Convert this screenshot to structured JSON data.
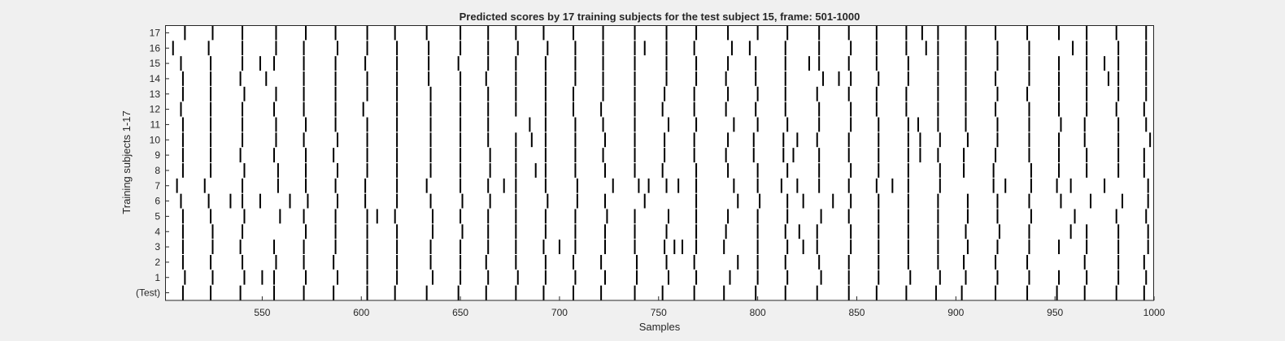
{
  "chart_data": {
    "type": "raster",
    "title": "Predicted scores by 17 training subjects for the test subject 15, frame: 501-1000",
    "xlabel": "Samples",
    "ylabel": "Training subjects 1-17",
    "xlim": [
      501,
      1000
    ],
    "xticks": [
      550,
      600,
      650,
      700,
      750,
      800,
      850,
      900,
      950,
      1000
    ],
    "y_categories": [
      "(Test)",
      "1",
      "2",
      "3",
      "4",
      "5",
      "6",
      "7",
      "8",
      "9",
      "10",
      "11",
      "12",
      "13",
      "14",
      "15",
      "16",
      "17"
    ],
    "events": {
      "(Test)": [
        510,
        524,
        539,
        556,
        571,
        586,
        603,
        617,
        633,
        649,
        663,
        678,
        692,
        707,
        721,
        738,
        752,
        768,
        783,
        799,
        814,
        830,
        846,
        860,
        875,
        890,
        903,
        920,
        936,
        951,
        965,
        981,
        995
      ],
      "1": [
        511,
        525,
        541,
        550,
        556,
        572,
        588,
        603,
        618,
        636,
        650,
        664,
        679,
        693,
        708,
        723,
        739,
        755,
        769,
        786,
        800,
        815,
        832,
        846,
        861,
        877,
        892,
        905,
        921,
        937,
        952,
        966,
        982,
        996
      ],
      "2": [
        510,
        524,
        540,
        557,
        571,
        586,
        603,
        618,
        635,
        650,
        663,
        678,
        693,
        707,
        721,
        739,
        754,
        768,
        790,
        800,
        814,
        831,
        846,
        861,
        876,
        891,
        904,
        920,
        936,
        965,
        982,
        995
      ],
      "3": [
        510,
        525,
        539,
        556,
        571,
        587,
        603,
        618,
        635,
        650,
        664,
        678,
        692,
        700,
        708,
        723,
        738,
        753,
        758,
        762,
        769,
        783,
        800,
        815,
        823,
        830,
        847,
        861,
        876,
        891,
        906,
        921,
        937,
        952,
        966,
        982,
        997
      ],
      "4": [
        510,
        525,
        540,
        572,
        587,
        603,
        618,
        636,
        651,
        664,
        678,
        693,
        708,
        723,
        738,
        754,
        769,
        784,
        800,
        814,
        821,
        830,
        847,
        861,
        876,
        891,
        905,
        922,
        937,
        958,
        966,
        982,
        997
      ],
      "5": [
        510,
        524,
        541,
        559,
        571,
        587,
        603,
        608,
        617,
        636,
        650,
        664,
        678,
        693,
        708,
        724,
        738,
        755,
        769,
        785,
        800,
        815,
        832,
        846,
        861,
        876,
        891,
        906,
        921,
        938,
        960,
        981,
        996
      ],
      "6": [
        509,
        523,
        534,
        540,
        549,
        564,
        573,
        588,
        602,
        618,
        635,
        651,
        665,
        678,
        694,
        709,
        723,
        743,
        769,
        790,
        801,
        815,
        823,
        838,
        847,
        861,
        876,
        891,
        906,
        921,
        937,
        953,
        968,
        984,
        997
      ],
      "7": [
        507,
        521,
        540,
        558,
        572,
        587,
        602,
        618,
        633,
        650,
        664,
        672,
        678,
        693,
        709,
        727,
        740,
        745,
        754,
        760,
        769,
        788,
        800,
        812,
        820,
        831,
        846,
        860,
        868,
        876,
        892,
        919,
        925,
        938,
        951,
        958,
        975,
        997
      ],
      "8": [
        510,
        524,
        541,
        558,
        572,
        588,
        603,
        618,
        635,
        650,
        665,
        678,
        688,
        693,
        708,
        723,
        738,
        752,
        769,
        785,
        800,
        815,
        831,
        847,
        861,
        876,
        892,
        904,
        919,
        938,
        952,
        966,
        982,
        995
      ],
      "9": [
        510,
        524,
        539,
        556,
        572,
        586,
        603,
        618,
        635,
        650,
        665,
        678,
        693,
        708,
        722,
        738,
        753,
        768,
        784,
        798,
        813,
        818,
        831,
        846,
        861,
        876,
        882,
        891,
        904,
        920,
        937,
        952,
        966,
        982,
        995
      ],
      "10": [
        510,
        524,
        540,
        557,
        571,
        588,
        603,
        618,
        635,
        650,
        664,
        678,
        686,
        693,
        708,
        723,
        738,
        753,
        768,
        785,
        798,
        813,
        820,
        830,
        846,
        861,
        876,
        882,
        892,
        906,
        921,
        937,
        952,
        965,
        982,
        998
      ],
      "11": [
        510,
        524,
        540,
        557,
        572,
        587,
        603,
        618,
        635,
        650,
        664,
        685,
        693,
        708,
        722,
        738,
        755,
        769,
        788,
        800,
        815,
        831,
        847,
        861,
        876,
        881,
        891,
        905,
        921,
        937,
        953,
        965,
        982,
        996
      ],
      "12": [
        509,
        524,
        540,
        556,
        571,
        587,
        601,
        618,
        635,
        650,
        664,
        678,
        693,
        707,
        721,
        738,
        752,
        768,
        784,
        799,
        814,
        831,
        847,
        860,
        875,
        891,
        905,
        920,
        937,
        952,
        966,
        981,
        995
      ],
      "13": [
        510,
        524,
        541,
        557,
        571,
        587,
        603,
        618,
        635,
        650,
        664,
        678,
        693,
        707,
        722,
        738,
        753,
        768,
        785,
        800,
        814,
        830,
        846,
        860,
        875,
        891,
        905,
        921,
        936,
        952,
        966,
        982,
        996
      ],
      "14": [
        510,
        524,
        539,
        552,
        571,
        587,
        603,
        618,
        634,
        650,
        663,
        678,
        693,
        708,
        722,
        738,
        754,
        769,
        784,
        799,
        814,
        833,
        841,
        847,
        861,
        876,
        891,
        905,
        920,
        937,
        952,
        966,
        977,
        982,
        996
      ],
      "15": [
        509,
        524,
        540,
        549,
        556,
        571,
        587,
        602,
        618,
        634,
        649,
        664,
        678,
        693,
        708,
        722,
        738,
        754,
        769,
        785,
        799,
        814,
        826,
        831,
        846,
        860,
        876,
        891,
        905,
        921,
        937,
        952,
        966,
        975,
        982,
        996
      ],
      "16": [
        505,
        523,
        540,
        557,
        571,
        588,
        603,
        618,
        634,
        650,
        664,
        679,
        694,
        708,
        722,
        738,
        743,
        754,
        768,
        787,
        796,
        814,
        831,
        847,
        860,
        875,
        885,
        891,
        905,
        921,
        937,
        959,
        966,
        982,
        996
      ],
      "17": [
        511,
        525,
        540,
        557,
        572,
        587,
        603,
        617,
        633,
        650,
        664,
        678,
        692,
        707,
        722,
        738,
        754,
        769,
        785,
        800,
        815,
        831,
        846,
        860,
        875,
        883,
        891,
        905,
        920,
        936,
        952,
        966,
        981,
        996
      ]
    },
    "grid": false,
    "legend": "none",
    "colors": {
      "background": "#f0f0f0",
      "axes_bg": "#ffffff",
      "mark": "#000000",
      "text": "#262626",
      "axis": "#262626"
    }
  }
}
